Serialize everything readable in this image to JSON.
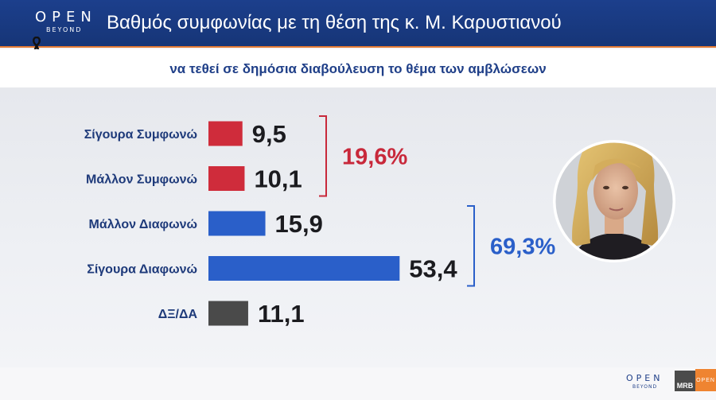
{
  "header": {
    "brand_top": "OPEN",
    "brand_bottom": "BEYOND",
    "title": "Βαθμός συμφωνίας με τη θέση της κ. Μ. Καρυστιανού",
    "subtitle": "να τεθεί σε δημόσια διαβούλευση το θέμα των αμβλώσεων",
    "colors": {
      "bar": "#1c3f8c",
      "accent": "#e57b35"
    },
    "icons": {
      "ribbon": "mourning-ribbon-icon"
    }
  },
  "chart_data": {
    "type": "bar",
    "orientation": "horizontal",
    "categories": [
      "Σίγουρα Συμφωνώ",
      "Μάλλον Συμφωνώ",
      "Μάλλον Διαφωνώ",
      "Σίγουρα Διαφωνώ",
      "ΔΞ/ΔΑ"
    ],
    "values": [
      9.5,
      10.1,
      15.9,
      53.4,
      11.1
    ],
    "value_labels": [
      "9,5",
      "10,1",
      "15,9",
      "53,4",
      "11,1"
    ],
    "colors": [
      "#cf2c3b",
      "#cf2c3b",
      "#2a5fc9",
      "#2a5fc9",
      "#4a4a4a"
    ],
    "groups": [
      {
        "label": "19,6%",
        "members": [
          0,
          1
        ],
        "color": "#c8283a"
      },
      {
        "label": "69,3%",
        "members": [
          2,
          3
        ],
        "color": "#2a5fc9"
      }
    ],
    "grid": false,
    "legend": "none"
  },
  "footer": {
    "brand_top": "OPEN",
    "brand_bottom": "BEYOND",
    "mrb": "MRB",
    "open_mini": "OPEN"
  }
}
